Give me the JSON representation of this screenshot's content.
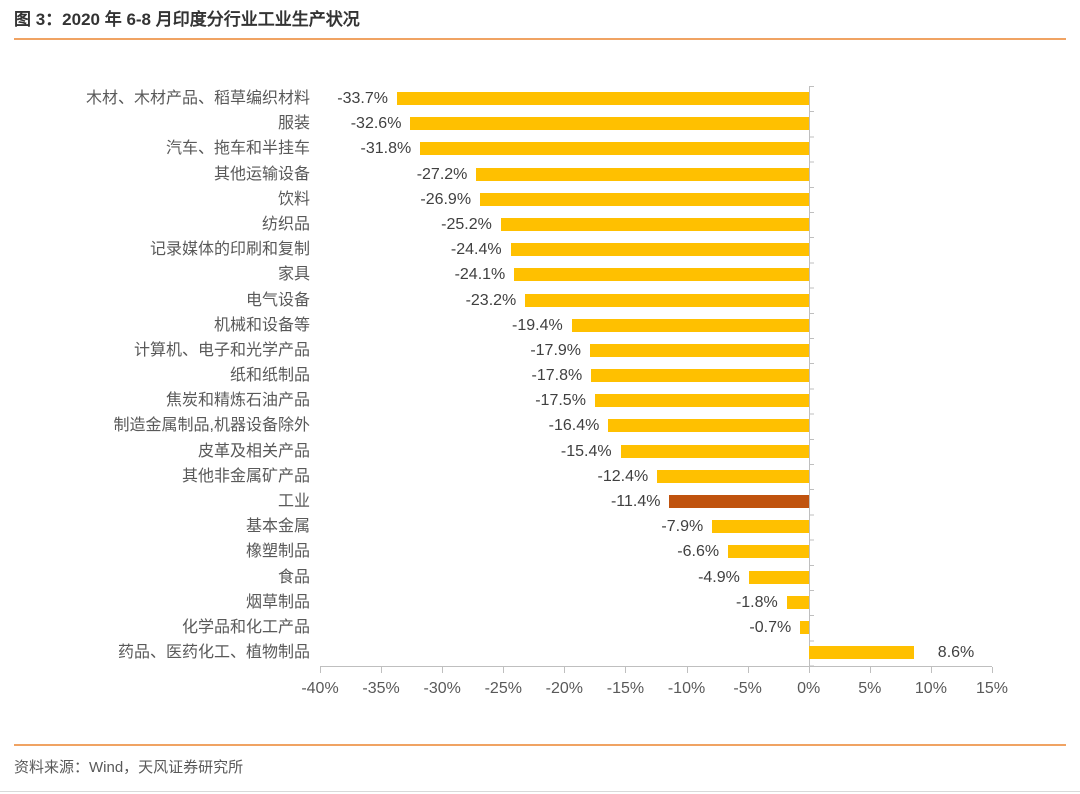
{
  "header": {
    "title": "图 3：2020 年 6-8 月印度分行业工业生产状况"
  },
  "footer": {
    "source": "资料来源：Wind，天风证券研究所"
  },
  "colors": {
    "bar": "#FFC000",
    "highlight_bar": "#C0530E",
    "accent_line": "#F0A363",
    "axis_line": "#BFBFBF",
    "tick_text": "#595959",
    "category_text": "#595959",
    "value_text": "#404040",
    "title_text": "#333333",
    "source_text": "#595959",
    "bottom_rule": "#D9D9D9"
  },
  "chart_data": {
    "type": "bar",
    "orientation": "horizontal",
    "title": "2020 年 6-8 月印度分行业工业生产状况",
    "xlabel": "",
    "ylabel": "",
    "xlim": [
      -40,
      15
    ],
    "grid": "zero-line-only",
    "legend": "none",
    "categories": [
      "木材、木材产品、稻草编织材料",
      "服装",
      "汽车、拖车和半挂车",
      "其他运输设备",
      "饮料",
      "纺织品",
      "记录媒体的印刷和复制",
      "家具",
      "电气设备",
      "机械和设备等",
      "计算机、电子和光学产品",
      "纸和纸制品",
      "焦炭和精炼石油产品",
      "制造金属制品,机器设备除外",
      "皮革及相关产品",
      "其他非金属矿产品",
      "工业",
      "基本金属",
      "橡塑制品",
      "食品",
      "烟草制品",
      "化学品和化工产品",
      "药品、医药化工、植物制品"
    ],
    "values": [
      -33.7,
      -32.6,
      -31.8,
      -27.2,
      -26.9,
      -25.2,
      -24.4,
      -24.1,
      -23.2,
      -19.4,
      -17.9,
      -17.8,
      -17.5,
      -16.4,
      -15.4,
      -12.4,
      -11.4,
      -7.9,
      -6.6,
      -4.9,
      -1.8,
      -0.7,
      8.6
    ],
    "value_labels": [
      "-33.7%",
      "-32.6%",
      "-31.8%",
      "-27.2%",
      "-26.9%",
      "-25.2%",
      "-24.4%",
      "-24.1%",
      "-23.2%",
      "-19.4%",
      "-17.9%",
      "-17.8%",
      "-17.5%",
      "-16.4%",
      "-15.4%",
      "-12.4%",
      "-11.4%",
      "-7.9%",
      "-6.6%",
      "-4.9%",
      "-1.8%",
      "-0.7%",
      "8.6%"
    ],
    "highlight_category": "工业",
    "highlight_index": 16,
    "x_tick_values": [
      -40,
      -35,
      -30,
      -25,
      -20,
      -15,
      -10,
      -5,
      0,
      5,
      10,
      15
    ],
    "x_tick_labels": [
      "-40%",
      "-35%",
      "-30%",
      "-25%",
      "-20%",
      "-15%",
      "-10%",
      "-5%",
      "0%",
      "5%",
      "10%",
      "15%"
    ]
  }
}
